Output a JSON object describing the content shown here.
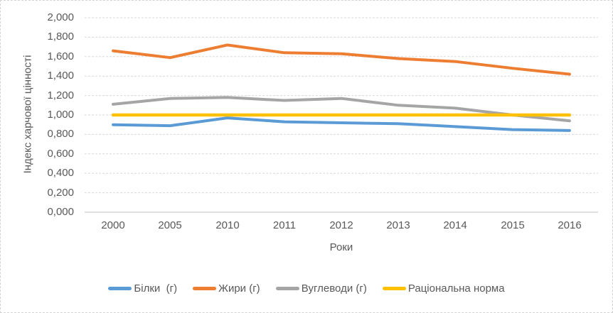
{
  "chart_data": {
    "type": "line",
    "title": "",
    "xlabel": "Роки",
    "ylabel": "Індекс харчової цінності",
    "categories": [
      "2000",
      "2005",
      "2010",
      "2011",
      "2012",
      "2013",
      "2014",
      "2015",
      "2016"
    ],
    "series": [
      {
        "name": "Білки  (г)",
        "color": "#5B9BD5",
        "values": [
          0.9,
          0.89,
          0.97,
          0.93,
          0.92,
          0.91,
          0.88,
          0.85,
          0.84
        ]
      },
      {
        "name": "Жири (г)",
        "color": "#ED7D31",
        "values": [
          1.66,
          1.59,
          1.72,
          1.64,
          1.63,
          1.58,
          1.55,
          1.48,
          1.42
        ]
      },
      {
        "name": "Вуглеводи (г)",
        "color": "#A5A5A5",
        "values": [
          1.11,
          1.17,
          1.18,
          1.15,
          1.17,
          1.1,
          1.07,
          1.0,
          0.94
        ]
      },
      {
        "name": "Раціональна норма",
        "color": "#FFC000",
        "values": [
          1.0,
          1.0,
          1.0,
          1.0,
          1.0,
          1.0,
          1.0,
          1.0,
          1.0
        ]
      }
    ],
    "ylim": [
      0,
      2
    ],
    "y_tick_step": 0.2,
    "y_tick_labels_topdown": [
      "2,000",
      "1,800",
      "1,600",
      "1,400",
      "1,200",
      "1,000",
      "0,800",
      "0,600",
      "0,400",
      "0,200",
      "0,000"
    ],
    "grid": true,
    "legend_position": "bottom"
  },
  "colors": {
    "gridline": "#D9D9D9",
    "axis_line": "#BFBFBF",
    "axis_text": "#595959",
    "border": "#D3D3D3"
  }
}
